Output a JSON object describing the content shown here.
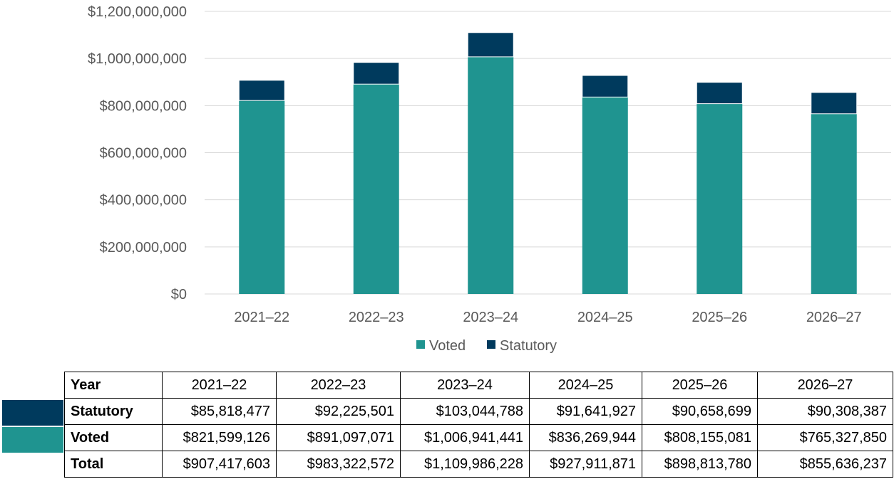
{
  "colors": {
    "voted": "#1f9490",
    "statutory": "#003a5d",
    "grid": "#d9d9d9",
    "axis_text": "#595959"
  },
  "chart_data": {
    "type": "bar",
    "stacked": true,
    "categories": [
      "2021–22",
      "2022–23",
      "2023–24",
      "2024–25",
      "2025–26",
      "2026–27"
    ],
    "series": [
      {
        "name": "Voted",
        "color": "#1f9490",
        "values": [
          821599126,
          891097071,
          1006941441,
          836269944,
          808155081,
          765327850
        ]
      },
      {
        "name": "Statutory",
        "color": "#003a5d",
        "values": [
          85818477,
          92225501,
          103044788,
          91641927,
          90658699,
          90308387
        ]
      }
    ],
    "ylim": [
      0,
      1200000000
    ],
    "yticks": [
      0,
      200000000,
      400000000,
      600000000,
      800000000,
      1000000000,
      1200000000
    ],
    "ytick_labels": [
      "$0",
      "$200,000,000",
      "$400,000,000",
      "$600,000,000",
      "$800,000,000",
      "$1,000,000,000",
      "$1,200,000,000"
    ],
    "grid": true,
    "legend": "bottom",
    "title": "",
    "xlabel": "",
    "ylabel": ""
  },
  "table": {
    "header": [
      "Year",
      "2021–22",
      "2022–23",
      "2023–24",
      "2024–25",
      "2025–26",
      "2026–27"
    ],
    "rows": [
      {
        "key": "statutory",
        "cells": [
          "Statutory",
          "$85,818,477",
          "$92,225,501",
          "$103,044,788",
          "$91,641,927",
          "$90,658,699",
          "$90,308,387"
        ]
      },
      {
        "key": "voted",
        "cells": [
          "Voted",
          "$821,599,126",
          "$891,097,071",
          "$1,006,941,441",
          "$836,269,944",
          "$808,155,081",
          "$765,327,850"
        ]
      },
      {
        "key": "total",
        "cells": [
          "Total",
          "$907,417,603",
          "$983,322,572",
          "$1,109,986,228",
          "$927,911,871",
          "$898,813,780",
          "$855,636,237"
        ]
      }
    ]
  }
}
